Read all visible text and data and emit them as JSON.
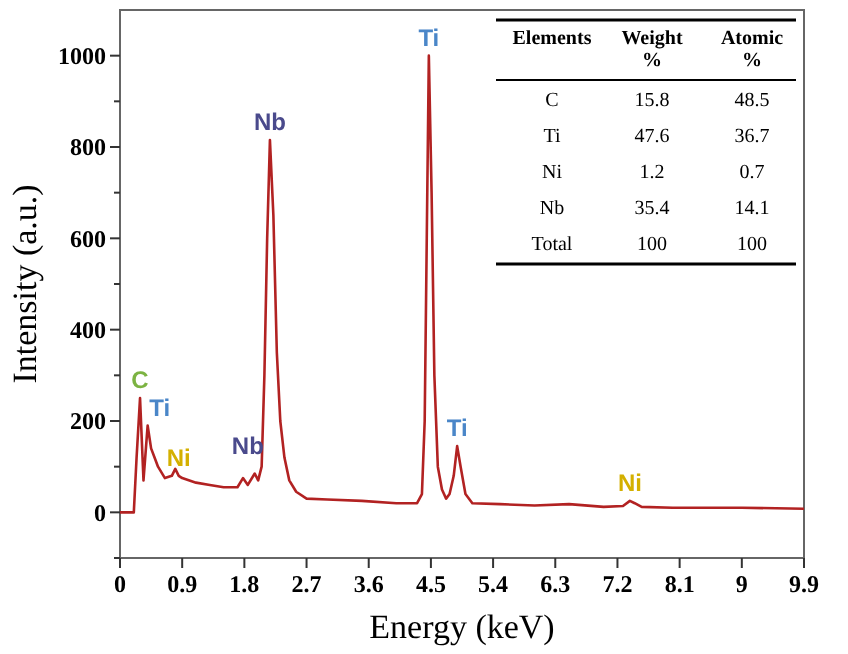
{
  "chart_data": [
    {
      "type": "line",
      "xlabel": "Energy (keV)",
      "ylabel": "Intensity (a.u.)",
      "series": [
        {
          "color": "#b22222",
          "x": [
            0,
            0.2,
            0.24,
            0.29,
            0.34,
            0.4,
            0.45,
            0.5,
            0.55,
            0.65,
            0.75,
            0.8,
            0.85,
            0.9,
            1.1,
            1.3,
            1.5,
            1.7,
            1.78,
            1.85,
            1.95,
            2.0,
            2.05,
            2.09,
            2.13,
            2.17,
            2.22,
            2.27,
            2.32,
            2.38,
            2.45,
            2.55,
            2.7,
            3.0,
            3.5,
            4.0,
            4.3,
            4.37,
            4.41,
            4.44,
            4.47,
            4.51,
            4.55,
            4.6,
            4.66,
            4.72,
            4.77,
            4.83,
            4.88,
            4.93,
            5.0,
            5.1,
            5.5,
            6.0,
            6.5,
            7.0,
            7.28,
            7.38,
            7.45,
            7.55,
            8.0,
            9.0,
            9.9
          ],
          "values": [
            0,
            0,
            120,
            250,
            70,
            190,
            140,
            120,
            100,
            75,
            80,
            95,
            80,
            75,
            65,
            60,
            55,
            55,
            75,
            60,
            85,
            70,
            100,
            300,
            600,
            815,
            650,
            350,
            200,
            120,
            70,
            45,
            30,
            28,
            25,
            20,
            20,
            40,
            200,
            600,
            1000,
            700,
            300,
            100,
            50,
            30,
            40,
            80,
            145,
            100,
            40,
            20,
            18,
            15,
            18,
            12,
            14,
            25,
            20,
            12,
            10,
            10,
            8
          ]
        }
      ],
      "xlim": [
        0,
        9.9
      ],
      "xticks": [
        0,
        0.9,
        1.8,
        2.7,
        3.6,
        4.5,
        5.4,
        6.3,
        7.2,
        8.1,
        9.0,
        9.9
      ],
      "ylim": [
        -100,
        1100
      ],
      "yticks": [
        {
          "value": -100,
          "label": null
        },
        0,
        {
          "value": 100,
          "label": null
        },
        200,
        {
          "value": 300,
          "label": null
        },
        400,
        {
          "value": 500,
          "label": null
        },
        600,
        {
          "value": 700,
          "label": null
        },
        800,
        {
          "value": 900,
          "label": null
        },
        1000
      ],
      "marker": "none",
      "line_style": "solid",
      "grid": false,
      "annotations": [
        {
          "text": "C",
          "x": 0.29,
          "y": 250
        },
        {
          "text": "Ti",
          "x": 0.4,
          "y": 190
        },
        {
          "text": "Ni",
          "x": 0.85,
          "y": 80
        },
        {
          "text": "Nb",
          "x": 1.85,
          "y": 75
        },
        {
          "text": "Nb",
          "x": 2.17,
          "y": 815
        },
        {
          "text": "Ti",
          "x": 4.47,
          "y": 1000
        },
        {
          "text": "Ti",
          "x": 4.88,
          "y": 145
        },
        {
          "text": "Ni",
          "x": 7.38,
          "y": 25
        }
      ]
    },
    {
      "type": "other",
      "categories": [
        "Elements",
        "Weight %",
        "Atomic %"
      ],
      "annotations": [
        "C",
        "15.8",
        "48.5",
        "Ti",
        "47.6",
        "36.7",
        "Ni",
        "1.2",
        "0.7",
        "Nb",
        "35.4",
        "14.1",
        "Total",
        "100",
        "100"
      ]
    }
  ]
}
